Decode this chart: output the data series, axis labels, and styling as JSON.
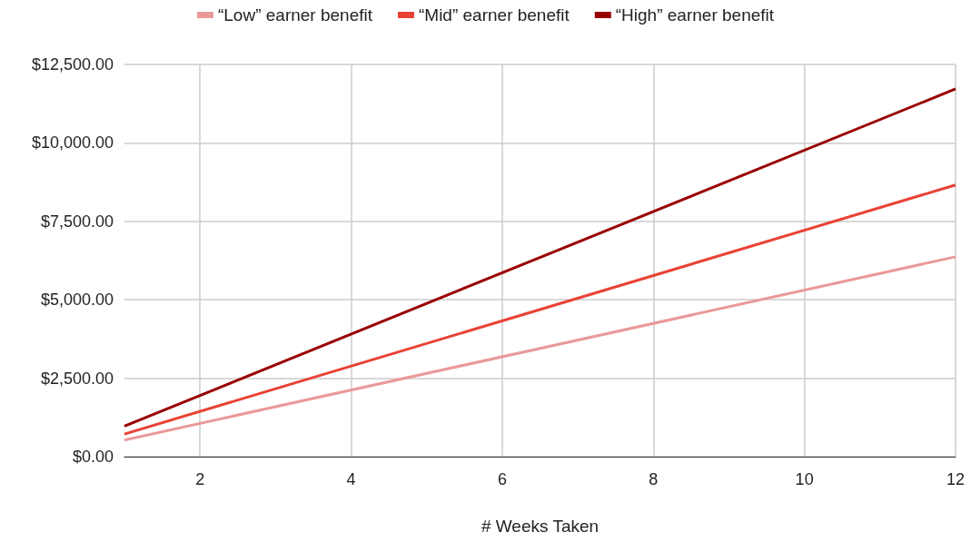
{
  "chart_data": {
    "type": "line",
    "xlabel": "# Weeks Taken",
    "x": [
      1,
      12
    ],
    "series": [
      {
        "name": "“Low” earner benefit",
        "color": "#ea9999",
        "values": [
          530,
          6370
        ]
      },
      {
        "name": "“Mid” earner benefit",
        "color": "#e94235",
        "values": [
          720,
          8660
        ]
      },
      {
        "name": "“High” earner benefit",
        "color": "#990000",
        "values": [
          975,
          11720
        ]
      }
    ],
    "xlim": [
      1,
      12
    ],
    "xticks": [
      2,
      4,
      6,
      8,
      10,
      12
    ],
    "ylim": [
      0,
      12500
    ],
    "yticks": [
      {
        "value": 0,
        "label": "$0.00"
      },
      {
        "value": 2500,
        "label": "$2,500.00"
      },
      {
        "value": 5000,
        "label": "$5,000.00"
      },
      {
        "value": 7500,
        "label": "$7,500.00"
      },
      {
        "value": 10000,
        "label": "$10,000.00"
      },
      {
        "value": 12500,
        "label": "$12,500.00"
      }
    ],
    "grid": true,
    "legend": "top",
    "marker": "none",
    "line_style": "solid"
  }
}
